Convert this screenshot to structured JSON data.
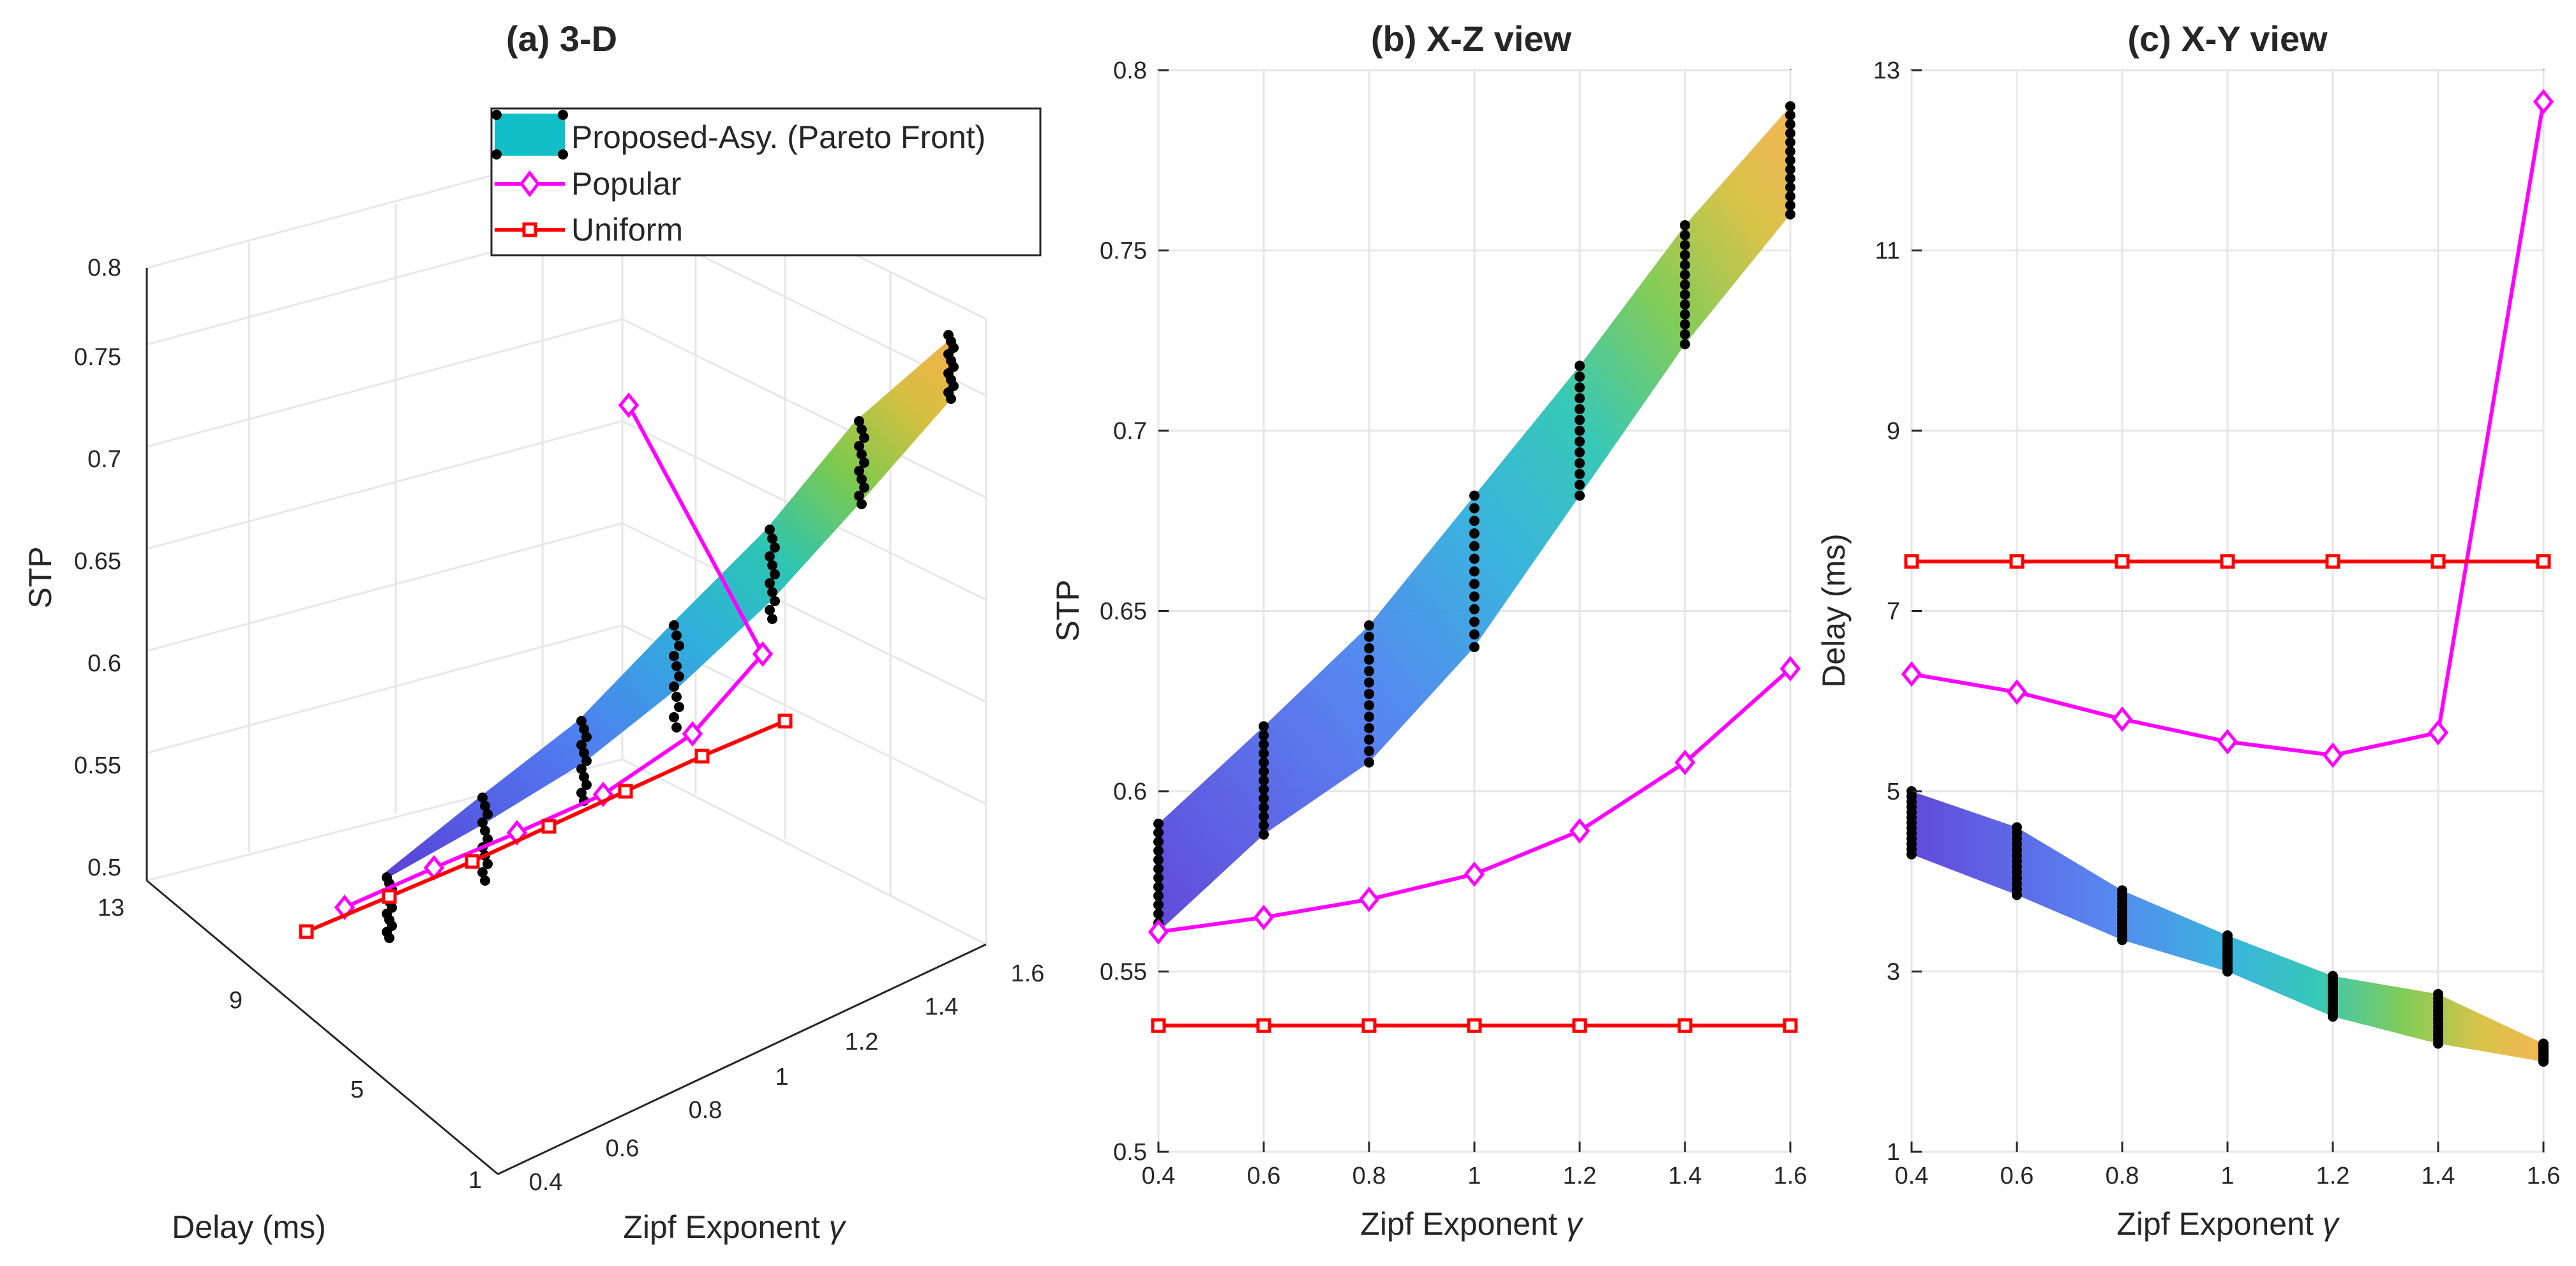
{
  "figure": {
    "panel_titles": [
      "(a) 3-D",
      "(b) X-Z view",
      "(c) X-Y view"
    ],
    "legend": [
      {
        "label": "Proposed-Asy. (Pareto Front)",
        "symbol": "surface"
      },
      {
        "label": "Popular",
        "symbol": "diamond"
      },
      {
        "label": "Uniform",
        "symbol": "square"
      }
    ],
    "colors": {
      "popular": "#ff00ff",
      "uniform": "#ff0000",
      "front_points": "#000000",
      "grid": "#e6e6e6",
      "axis": "#262626",
      "surface_stops": [
        "#5a40d8",
        "#4f7ef0",
        "#2fb0dc",
        "#2cc5b4",
        "#7cc94e",
        "#d5c040",
        "#f5b14a"
      ]
    },
    "axis_text": {
      "xlabel": "Zipf Exponent",
      "xlabel_symbol": "γ",
      "stp_label": "STP",
      "delay_label": "Delay (ms)"
    }
  },
  "chart_data": [
    {
      "type": "surface3d",
      "title": "(a) 3-D",
      "xlabel": "Zipf Exponent γ",
      "ylabel": "Delay (ms)",
      "zlabel": "STP",
      "xlim": [
        0.4,
        1.6
      ],
      "ylim": [
        1,
        13
      ],
      "zlim": [
        0.5,
        0.8
      ],
      "xticks": [
        0.4,
        0.6,
        0.8,
        1,
        1.2,
        1.4,
        1.6
      ],
      "yticks": [
        1,
        5,
        9,
        13
      ],
      "zticks": [
        0.5,
        0.55,
        0.6,
        0.65,
        0.7,
        0.75,
        0.8
      ],
      "legend_position": "top-right",
      "grid": true
    },
    {
      "type": "area",
      "title": "(b) X-Z view",
      "xlabel": "Zipf Exponent γ",
      "ylabel": "STP",
      "x": [
        0.4,
        0.6,
        0.8,
        1.0,
        1.2,
        1.4,
        1.6
      ],
      "xlim": [
        0.4,
        1.6
      ],
      "ylim": [
        0.5,
        0.8
      ],
      "xticks": [
        0.4,
        0.6,
        0.8,
        1,
        1.2,
        1.4,
        1.6
      ],
      "yticks": [
        0.5,
        0.55,
        0.6,
        0.65,
        0.7,
        0.75,
        0.8
      ],
      "grid": true,
      "front_band": {
        "low": [
          0.561,
          0.588,
          0.608,
          0.64,
          0.682,
          0.724,
          0.76
        ],
        "high": [
          0.591,
          0.618,
          0.646,
          0.682,
          0.718,
          0.757,
          0.79
        ]
      },
      "series": [
        {
          "name": "Popular",
          "values": [
            0.561,
            0.565,
            0.57,
            0.577,
            0.589,
            0.608,
            0.634
          ]
        },
        {
          "name": "Uniform",
          "values": [
            0.535,
            0.535,
            0.535,
            0.535,
            0.535,
            0.535,
            0.535
          ]
        }
      ]
    },
    {
      "type": "area",
      "title": "(c) X-Y view",
      "xlabel": "Zipf Exponent γ",
      "ylabel": "Delay (ms)",
      "x": [
        0.4,
        0.6,
        0.8,
        1.0,
        1.2,
        1.4,
        1.6
      ],
      "xlim": [
        0.4,
        1.6
      ],
      "ylim": [
        1,
        13
      ],
      "xticks": [
        0.4,
        0.6,
        0.8,
        1,
        1.2,
        1.4,
        1.6
      ],
      "yticks": [
        1,
        3,
        5,
        7,
        9,
        11,
        13
      ],
      "grid": true,
      "front_band": {
        "low": [
          4.3,
          3.85,
          3.35,
          3.0,
          2.5,
          2.2,
          2.0
        ],
        "high": [
          5.0,
          4.6,
          3.9,
          3.4,
          2.95,
          2.75,
          2.2
        ]
      },
      "series": [
        {
          "name": "Popular",
          "values": [
            6.3,
            6.1,
            5.8,
            5.55,
            5.4,
            5.65,
            12.65
          ]
        },
        {
          "name": "Uniform",
          "values": [
            7.55,
            7.55,
            7.55,
            7.55,
            7.55,
            7.55,
            7.55
          ]
        }
      ]
    }
  ]
}
